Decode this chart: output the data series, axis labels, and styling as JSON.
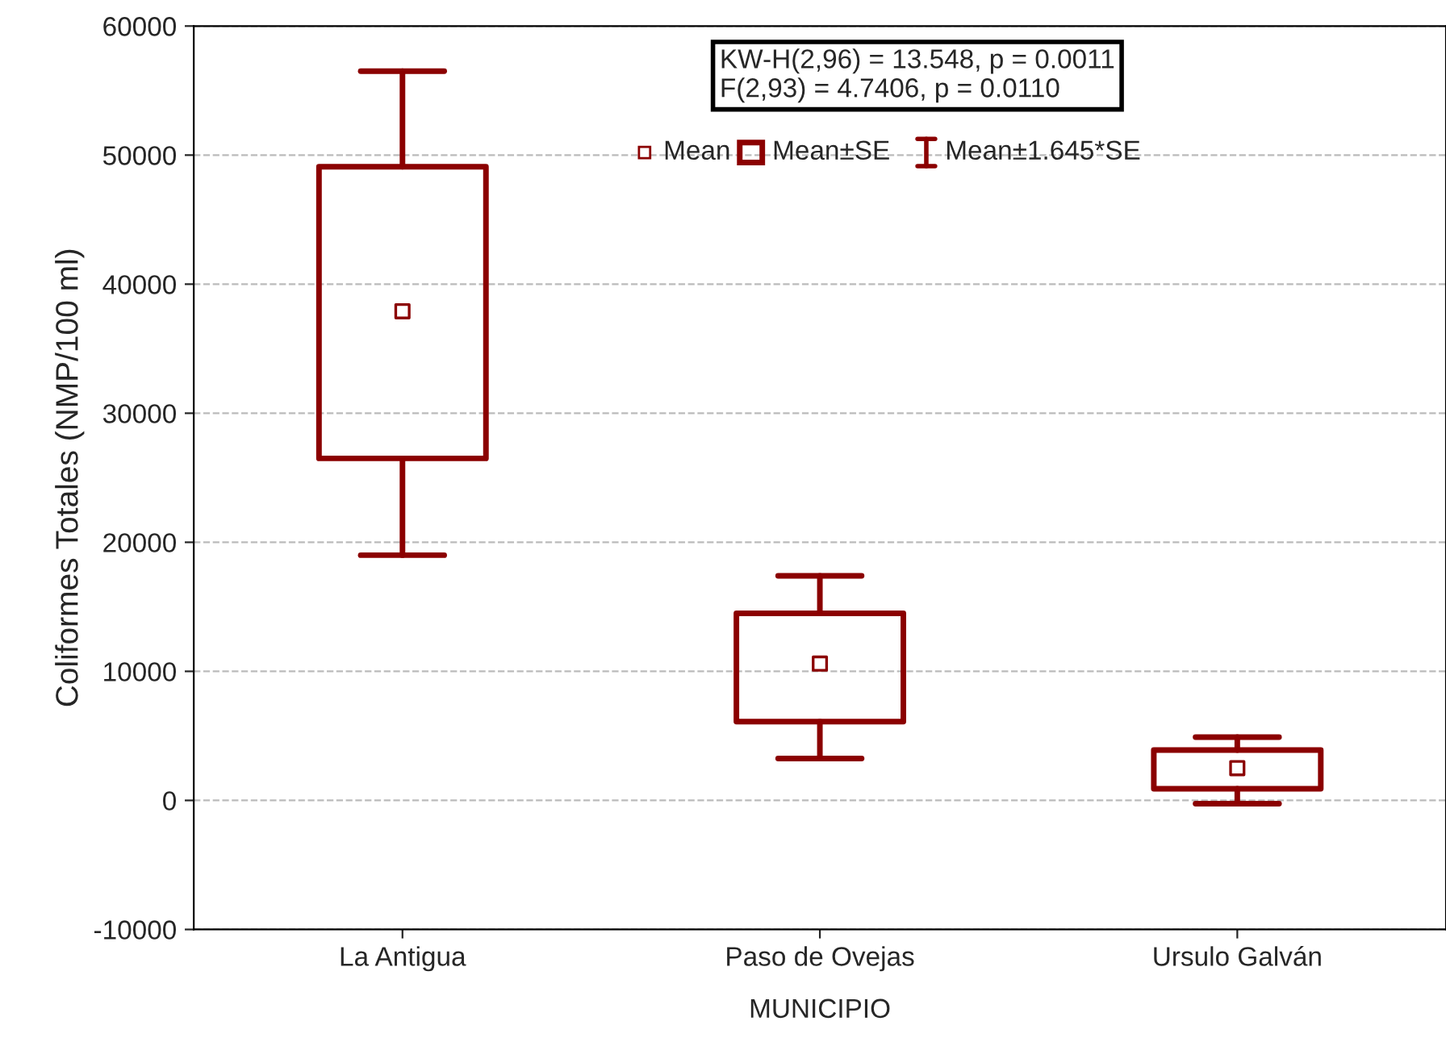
{
  "chart_data": {
    "type": "box",
    "xlabel": "MUNICIPIO",
    "ylabel": "Coliformes Totales (NMP/100 ml)",
    "categories": [
      "La Antigua",
      "Paso de Ovejas",
      "Ursulo Galván"
    ],
    "color": "#8b0000",
    "boxes": [
      {
        "low": 19000,
        "q1": 26500,
        "mean": 37900,
        "q3": 49100,
        "high": 56500
      },
      {
        "low": 3250,
        "q1": 6100,
        "mean": 10600,
        "q3": 14500,
        "high": 17400
      },
      {
        "low": -250,
        "q1": 900,
        "mean": 2500,
        "q3": 3900,
        "high": 4900
      }
    ],
    "ylim": [
      -10000,
      60000
    ],
    "yticks": [
      -10000,
      0,
      10000,
      20000,
      30000,
      40000,
      50000,
      60000
    ],
    "grid": "y",
    "annotations": [
      "KW-H(2,96) = 13.548, p = 0.0011\nF(2,93) = 4.7406, p = 0.0110",
      "Mean",
      "Mean±SE",
      "Mean±1.645*SE"
    ]
  }
}
